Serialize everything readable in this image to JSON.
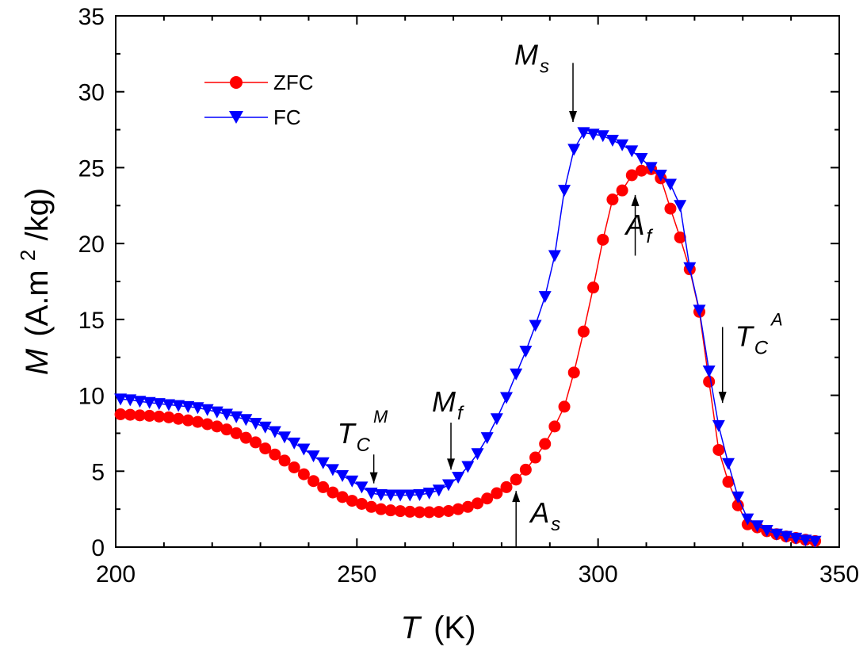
{
  "chart_data": {
    "type": "line",
    "title": "",
    "xlabel": {
      "symbol": "T",
      "unit": "(K)"
    },
    "ylabel": {
      "symbol": "M",
      "unit_pre": "(A.m",
      "unit_sup": "2",
      "unit_post": "/kg)"
    },
    "xlim": [
      200,
      350
    ],
    "ylim": [
      0,
      35
    ],
    "xticks": [
      "200",
      "250",
      "300",
      "350"
    ],
    "yticks": [
      "0",
      "5",
      "10",
      "15",
      "20",
      "25",
      "30",
      "35"
    ],
    "grid": false,
    "legend_position": "top-left",
    "series": [
      {
        "name": "ZFC",
        "color": "#ff0000",
        "marker": "circle",
        "x": [
          201,
          203,
          205,
          207,
          209,
          211,
          213,
          215,
          217,
          219,
          221,
          223,
          225,
          227,
          229,
          231,
          233,
          235,
          237,
          239,
          241,
          243,
          245,
          247,
          249,
          251,
          253,
          255,
          257,
          259,
          261,
          263,
          265,
          267,
          269,
          271,
          273,
          275,
          277,
          279,
          281,
          283,
          285,
          287,
          289,
          291,
          293,
          295,
          297,
          299,
          301,
          303,
          305,
          307,
          309,
          311,
          313,
          315,
          317,
          319,
          321,
          323,
          325,
          327,
          329,
          331,
          333,
          335,
          337,
          339,
          341,
          343,
          345
        ],
        "y": [
          8.75,
          8.72,
          8.68,
          8.65,
          8.6,
          8.55,
          8.45,
          8.35,
          8.25,
          8.1,
          7.95,
          7.75,
          7.5,
          7.2,
          6.9,
          6.5,
          6.1,
          5.7,
          5.25,
          4.8,
          4.35,
          3.95,
          3.6,
          3.3,
          3.05,
          2.85,
          2.65,
          2.5,
          2.42,
          2.37,
          2.33,
          2.3,
          2.3,
          2.32,
          2.38,
          2.5,
          2.65,
          2.88,
          3.2,
          3.55,
          3.95,
          4.45,
          5.1,
          5.9,
          6.8,
          7.95,
          9.25,
          11.5,
          14.2,
          17.1,
          20.25,
          22.9,
          23.5,
          24.5,
          24.8,
          24.9,
          24.3,
          22.3,
          20.4,
          18.3,
          15.5,
          10.9,
          6.4,
          4.3,
          2.75,
          1.5,
          1.3,
          1.05,
          0.85,
          0.7,
          0.6,
          0.48,
          0.4
        ]
      },
      {
        "name": "FC",
        "color": "#0000ff",
        "marker": "triangle-down",
        "x": [
          201,
          203,
          205,
          207,
          209,
          211,
          213,
          215,
          217,
          219,
          221,
          223,
          225,
          227,
          229,
          231,
          233,
          235,
          237,
          239,
          241,
          243,
          245,
          247,
          249,
          251,
          253,
          255,
          257,
          259,
          261,
          263,
          265,
          267,
          269,
          271,
          273,
          275,
          277,
          279,
          281,
          283,
          285,
          287,
          289,
          291,
          293,
          295,
          297,
          299,
          301,
          303,
          305,
          307,
          309,
          311,
          313,
          315,
          317,
          319,
          321,
          323,
          325,
          327,
          329,
          331,
          333,
          335,
          337,
          339,
          341,
          343,
          345
        ],
        "y": [
          9.75,
          9.7,
          9.6,
          9.52,
          9.45,
          9.38,
          9.32,
          9.25,
          9.18,
          9.05,
          8.9,
          8.75,
          8.58,
          8.4,
          8.15,
          7.9,
          7.6,
          7.25,
          6.85,
          6.45,
          6.0,
          5.55,
          5.1,
          4.7,
          4.35,
          3.95,
          3.55,
          3.45,
          3.42,
          3.42,
          3.42,
          3.45,
          3.55,
          3.75,
          4.1,
          4.6,
          5.3,
          6.15,
          7.2,
          8.45,
          9.85,
          11.4,
          12.9,
          14.6,
          16.5,
          19.2,
          23.5,
          26.2,
          27.3,
          27.2,
          27.1,
          26.8,
          26.5,
          26.1,
          25.6,
          25.0,
          24.5,
          23.9,
          22.5,
          18.4,
          15.6,
          11.6,
          8.0,
          5.5,
          3.3,
          1.85,
          1.4,
          1.1,
          0.85,
          0.7,
          0.58,
          0.45,
          0.38
        ]
      }
    ],
    "annotations": [
      {
        "id": "tcm",
        "main": "T",
        "sub": "C",
        "sup": "M",
        "x": 253.5,
        "arrow_from": 6.1,
        "arrow_to": 4.2,
        "direction": "down"
      },
      {
        "id": "mf",
        "main": "M",
        "sub": "f",
        "x": 269.5,
        "arrow_from": 8.2,
        "arrow_to": 5.1,
        "direction": "down"
      },
      {
        "id": "as",
        "main": "A",
        "sub": "s",
        "x": 283,
        "arrow_from": 0,
        "arrow_to": 3.7,
        "direction": "up"
      },
      {
        "id": "ms",
        "main": "M",
        "sub": "s",
        "x": 294.8,
        "arrow_from": 31.9,
        "arrow_to": 28.0,
        "direction": "down"
      },
      {
        "id": "af",
        "main": "A",
        "sub": "f",
        "x": 307.7,
        "arrow_from": 19.2,
        "arrow_to": 23.2,
        "direction": "up"
      },
      {
        "id": "tca",
        "main": "T",
        "sub": "C",
        "sup": "A",
        "x": 325.8,
        "arrow_from": 14.5,
        "arrow_to": 9.5,
        "direction": "down"
      }
    ]
  }
}
